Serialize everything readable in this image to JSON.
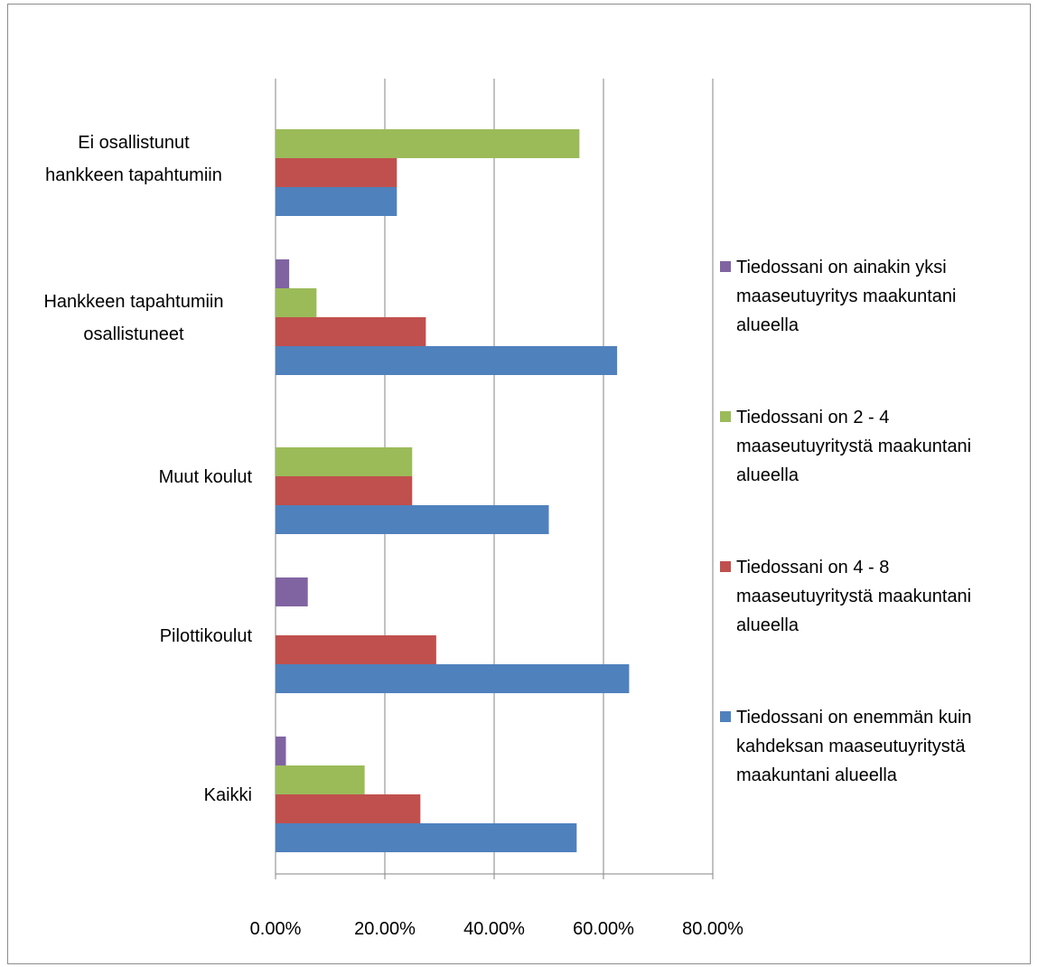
{
  "chart_data": {
    "type": "bar",
    "orientation": "horizontal",
    "title": "",
    "xlabel": "",
    "ylabel": "",
    "xlim": [
      0,
      0.8
    ],
    "ticks": [
      "0.00%",
      "20.00%",
      "40.00%",
      "60.00%",
      "80.00%"
    ],
    "tick_values": [
      0,
      0.2,
      0.4,
      0.6,
      0.8
    ],
    "grid": true,
    "legend_position": "right",
    "categories": [
      "Ei osallistunut hankkeen tapahtumiin",
      "Hankkeen tapahtumiin osallistuneet",
      "Muut koulut",
      "Pilottikoulut",
      "Kaikki"
    ],
    "series": [
      {
        "name": "Tiedossani on ainakin yksi maaseutuyritys maakuntani alueella",
        "color": "#8064a2",
        "values": [
          0,
          0.025,
          0,
          0.059,
          0.019
        ]
      },
      {
        "name": "Tiedossani on 2 - 4 maaseutuyritystä maakuntani alueella",
        "color": "#9bbb59",
        "values": [
          0.556,
          0.075,
          0.25,
          0,
          0.163
        ]
      },
      {
        "name": "Tiedossani on 4 - 8 maaseutuyritystä maakuntani alueella",
        "color": "#c0504d",
        "values": [
          0.222,
          0.275,
          0.25,
          0.294,
          0.265
        ]
      },
      {
        "name": "Tiedossani on enemmän kuin kahdeksan maaseutuyritystä maakuntani alueella",
        "color": "#4f81bd",
        "values": [
          0.222,
          0.625,
          0.5,
          0.647,
          0.551
        ]
      }
    ]
  }
}
